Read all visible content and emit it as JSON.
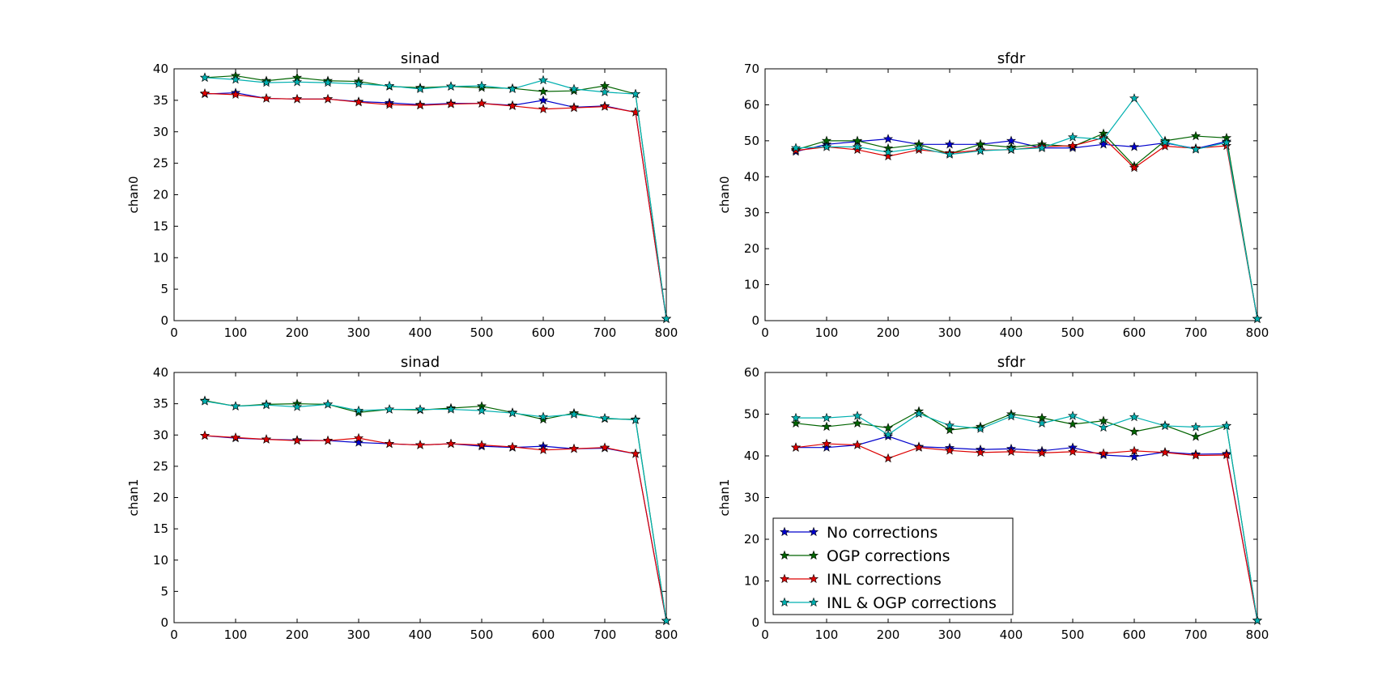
{
  "chart_data": [
    {
      "type": "line",
      "title": "sinad",
      "ylabel": "chan0",
      "xlim": [
        0,
        800
      ],
      "ylim": [
        0,
        40
      ],
      "xticks": [
        0,
        100,
        200,
        300,
        400,
        500,
        600,
        700,
        800
      ],
      "yticks": [
        0,
        5,
        10,
        15,
        20,
        25,
        30,
        35,
        40
      ],
      "x": [
        50,
        100,
        150,
        200,
        250,
        300,
        350,
        400,
        450,
        500,
        550,
        600,
        650,
        700,
        750,
        800
      ],
      "series": [
        {
          "name": "No corrections",
          "color": "#0000cc",
          "values": [
            36.0,
            36.2,
            35.3,
            35.2,
            35.2,
            34.8,
            34.6,
            34.3,
            34.5,
            34.5,
            34.2,
            35.0,
            33.9,
            34.1,
            33.1,
            0.3
          ]
        },
        {
          "name": "OGP corrections",
          "color": "#006400",
          "values": [
            38.6,
            38.9,
            38.1,
            38.6,
            38.1,
            38.0,
            37.2,
            37.0,
            37.2,
            37.0,
            36.9,
            36.4,
            36.5,
            37.3,
            36.0,
            0.3
          ]
        },
        {
          "name": "INL corrections",
          "color": "#dd0000",
          "values": [
            36.1,
            35.9,
            35.3,
            35.2,
            35.2,
            34.7,
            34.3,
            34.2,
            34.4,
            34.5,
            34.1,
            33.6,
            33.8,
            34.0,
            33.1,
            0.3
          ]
        },
        {
          "name": "INL & OGP corrections",
          "color": "#00b0b0",
          "values": [
            38.6,
            38.3,
            37.8,
            37.9,
            37.8,
            37.6,
            37.3,
            36.8,
            37.2,
            37.3,
            36.8,
            38.2,
            36.8,
            36.3,
            36.0,
            0.3
          ]
        }
      ]
    },
    {
      "type": "line",
      "title": "sfdr",
      "ylabel": "chan0",
      "xlim": [
        0,
        800
      ],
      "ylim": [
        0,
        70
      ],
      "xticks": [
        0,
        100,
        200,
        300,
        400,
        500,
        600,
        700,
        800
      ],
      "yticks": [
        0,
        10,
        20,
        30,
        40,
        50,
        60,
        70
      ],
      "x": [
        50,
        100,
        150,
        200,
        250,
        300,
        350,
        400,
        450,
        500,
        550,
        600,
        650,
        700,
        750,
        800
      ],
      "series": [
        {
          "name": "No corrections",
          "color": "#0000cc",
          "values": [
            47.0,
            49.0,
            49.8,
            50.5,
            49.0,
            49.0,
            49.0,
            50.0,
            48.0,
            48.0,
            49.0,
            48.3,
            49.4,
            47.8,
            49.8,
            0.5
          ]
        },
        {
          "name": "OGP corrections",
          "color": "#006400",
          "values": [
            47.5,
            50.0,
            50.0,
            47.9,
            49.0,
            46.4,
            49.0,
            48.2,
            49.0,
            48.4,
            52.0,
            43.0,
            50.0,
            51.3,
            50.8,
            0.5
          ]
        },
        {
          "name": "INL corrections",
          "color": "#dd0000",
          "values": [
            47.3,
            48.3,
            47.5,
            45.7,
            47.5,
            46.6,
            47.4,
            47.5,
            48.4,
            48.6,
            50.8,
            42.5,
            48.5,
            47.9,
            48.6,
            0.5
          ]
        },
        {
          "name": "INL & OGP corrections",
          "color": "#00b0b0",
          "values": [
            48.0,
            48.3,
            48.3,
            46.8,
            48.0,
            46.2,
            47.2,
            47.6,
            48.0,
            51.0,
            50.4,
            61.8,
            49.6,
            47.6,
            49.5,
            0.5
          ]
        }
      ]
    },
    {
      "type": "line",
      "title": "sinad",
      "ylabel": "chan1",
      "xlim": [
        0,
        800
      ],
      "ylim": [
        0,
        40
      ],
      "xticks": [
        0,
        100,
        200,
        300,
        400,
        500,
        600,
        700,
        800
      ],
      "yticks": [
        0,
        5,
        10,
        15,
        20,
        25,
        30,
        35,
        40
      ],
      "x": [
        50,
        100,
        150,
        200,
        250,
        300,
        350,
        400,
        450,
        500,
        550,
        600,
        650,
        700,
        750,
        800
      ],
      "series": [
        {
          "name": "No corrections",
          "color": "#0000cc",
          "values": [
            29.9,
            29.5,
            29.3,
            29.2,
            29.1,
            28.8,
            28.6,
            28.4,
            28.6,
            28.2,
            28.0,
            28.2,
            27.8,
            27.9,
            27.0,
            0.3
          ]
        },
        {
          "name": "OGP corrections",
          "color": "#006400",
          "values": [
            35.5,
            34.6,
            34.9,
            35.0,
            34.9,
            33.6,
            34.1,
            34.0,
            34.3,
            34.6,
            33.6,
            32.5,
            33.5,
            32.6,
            32.5,
            0.3
          ]
        },
        {
          "name": "INL corrections",
          "color": "#dd0000",
          "values": [
            29.9,
            29.6,
            29.3,
            29.1,
            29.1,
            29.5,
            28.6,
            28.4,
            28.6,
            28.4,
            28.1,
            27.6,
            27.8,
            28.0,
            27.0,
            0.3
          ]
        },
        {
          "name": "INL & OGP corrections",
          "color": "#00b0b0",
          "values": [
            35.4,
            34.6,
            34.8,
            34.5,
            34.9,
            33.9,
            34.1,
            34.1,
            34.1,
            33.9,
            33.5,
            32.9,
            33.3,
            32.7,
            32.4,
            0.3
          ]
        }
      ]
    },
    {
      "type": "line",
      "title": "sfdr",
      "ylabel": "chan1",
      "xlim": [
        0,
        800
      ],
      "ylim": [
        0,
        60
      ],
      "xticks": [
        0,
        100,
        200,
        300,
        400,
        500,
        600,
        700,
        800
      ],
      "yticks": [
        0,
        10,
        20,
        30,
        40,
        50,
        60
      ],
      "x": [
        50,
        100,
        150,
        200,
        250,
        300,
        350,
        400,
        450,
        500,
        550,
        600,
        650,
        700,
        750,
        800
      ],
      "legend": "lower-left",
      "series": [
        {
          "name": "No corrections",
          "color": "#0000cc",
          "values": [
            42.0,
            42.0,
            42.6,
            44.7,
            42.2,
            41.9,
            41.5,
            41.7,
            41.2,
            42.0,
            40.2,
            39.8,
            40.9,
            40.4,
            40.5,
            0.5
          ]
        },
        {
          "name": "OGP corrections",
          "color": "#006400",
          "values": [
            47.8,
            47.0,
            47.8,
            46.7,
            50.7,
            46.2,
            47.0,
            50.0,
            49.1,
            47.6,
            48.4,
            45.8,
            47.3,
            44.6,
            47.2,
            0.5
          ]
        },
        {
          "name": "INL corrections",
          "color": "#dd0000",
          "values": [
            42.0,
            42.9,
            42.6,
            39.4,
            42.0,
            41.3,
            40.8,
            41.0,
            40.7,
            41.0,
            40.6,
            41.2,
            40.8,
            40.1,
            40.2,
            0.5
          ]
        },
        {
          "name": "INL & OGP corrections",
          "color": "#00b0b0",
          "values": [
            49.1,
            49.1,
            49.6,
            45.1,
            50.1,
            47.3,
            46.5,
            49.5,
            47.8,
            49.6,
            46.8,
            49.3,
            47.2,
            46.9,
            47.2,
            0.5
          ]
        }
      ]
    }
  ]
}
